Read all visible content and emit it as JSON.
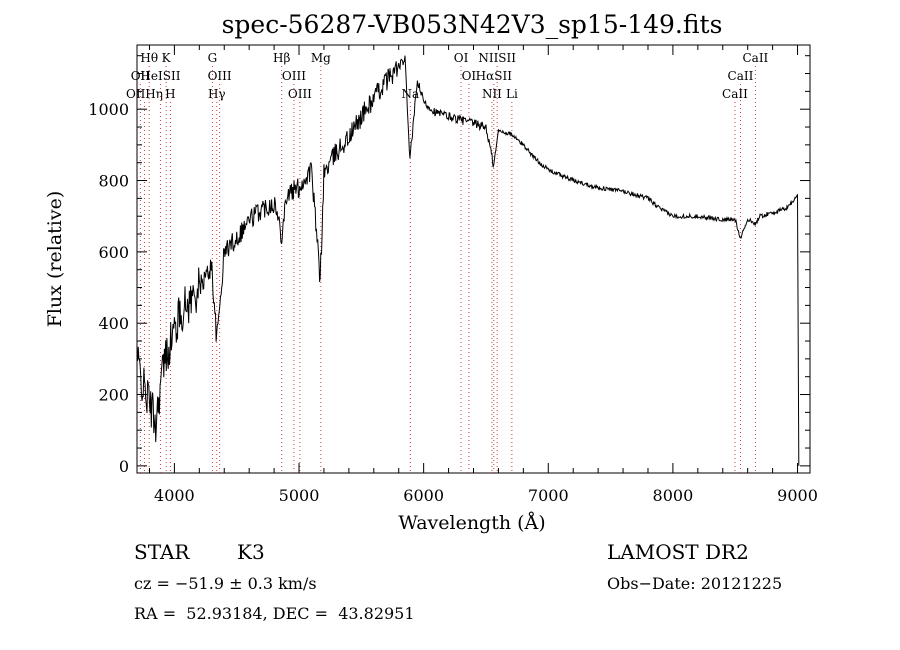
{
  "chart_data": {
    "type": "line",
    "title": "spec-56287-VB053N42V3_sp15-149.fits",
    "xlabel": "Wavelength (Å)",
    "ylabel": "Flux (relative)",
    "xlim": [
      3700,
      9100
    ],
    "ylim": [
      -20,
      1180
    ],
    "xticks": [
      4000,
      5000,
      6000,
      7000,
      8000,
      9000
    ],
    "yticks": [
      0,
      200,
      400,
      600,
      800,
      1000
    ],
    "x": [
      3700,
      3750,
      3800,
      3850,
      3900,
      3950,
      4000,
      4050,
      4100,
      4200,
      4300,
      4340,
      4400,
      4500,
      4600,
      4700,
      4800,
      4860,
      4900,
      5000,
      5100,
      5170,
      5200,
      5300,
      5400,
      5500,
      5600,
      5700,
      5800,
      5850,
      5890,
      5950,
      6000,
      6100,
      6200,
      6300,
      6400,
      6500,
      6563,
      6600,
      6700,
      6800,
      6900,
      7000,
      7200,
      7400,
      7600,
      7800,
      7900,
      8000,
      8200,
      8400,
      8500,
      8542,
      8600,
      8662,
      8700,
      8800,
      8900,
      8960,
      9000
    ],
    "y": [
      300,
      220,
      180,
      120,
      260,
      330,
      380,
      430,
      450,
      500,
      560,
      350,
      600,
      640,
      690,
      720,
      740,
      650,
      760,
      780,
      830,
      520,
      820,
      880,
      920,
      980,
      1030,
      1080,
      1120,
      1140,
      860,
      1080,
      1020,
      990,
      980,
      970,
      960,
      950,
      840,
      940,
      930,
      900,
      860,
      830,
      800,
      780,
      770,
      750,
      720,
      700,
      700,
      690,
      690,
      640,
      690,
      680,
      700,
      710,
      720,
      740,
      760
    ],
    "line_markers": [
      {
        "label": "Hθ",
        "x": 3798,
        "row": 0
      },
      {
        "label": "K",
        "x": 3934,
        "row": 0
      },
      {
        "label": "G",
        "x": 4305,
        "row": 0
      },
      {
        "label": "Hβ",
        "x": 4861,
        "row": 0
      },
      {
        "label": "Mg",
        "x": 5175,
        "row": 0
      },
      {
        "label": "OI",
        "x": 6300,
        "row": 0
      },
      {
        "label": "NIISII",
        "x": 6590,
        "row": 0
      },
      {
        "label": "CaII",
        "x": 8662,
        "row": 0
      },
      {
        "label": "OII",
        "x": 3727,
        "row": 1
      },
      {
        "label": "HeISII",
        "x": 3888,
        "row": 1
      },
      {
        "label": "OIII",
        "x": 4363,
        "row": 1
      },
      {
        "label": "OIII",
        "x": 4959,
        "row": 1
      },
      {
        "label": "OI",
        "x": 6363,
        "row": 1
      },
      {
        "label": "HαSII",
        "x": 6563,
        "row": 1
      },
      {
        "label": "CaII",
        "x": 8542,
        "row": 1
      },
      {
        "label": "OIIHη",
        "x": 3760,
        "row": 2
      },
      {
        "label": "H",
        "x": 3968,
        "row": 2
      },
      {
        "label": "Hγ",
        "x": 4340,
        "row": 2
      },
      {
        "label": "OIII",
        "x": 5007,
        "row": 2
      },
      {
        "label": "Na",
        "x": 5893,
        "row": 2
      },
      {
        "label": "NII",
        "x": 6548,
        "row": 2
      },
      {
        "label": "Li",
        "x": 6708,
        "row": 2
      },
      {
        "label": "CaII",
        "x": 8498,
        "row": 2
      }
    ]
  },
  "info": {
    "object_class": "STAR",
    "subclass": "K3",
    "survey": "LAMOST DR2",
    "cz": "cz = −51.9 ± 0.3 km/s",
    "obs_date": "Obs−Date: 20121225",
    "coords": "RA =  52.93184, DEC =  43.82951"
  }
}
